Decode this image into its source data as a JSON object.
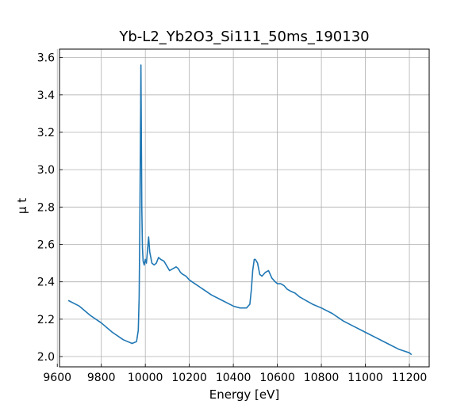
{
  "chart_data": {
    "type": "line",
    "title": "Yb-L2_Yb2O3_Si111_50ms_190130",
    "xlabel": "Energy [eV]",
    "ylabel": "μ t",
    "xlim": [
      9610,
      11290
    ],
    "ylim": [
      1.945,
      3.645
    ],
    "grid": true,
    "x_ticks": [
      9600,
      9800,
      10000,
      10200,
      10400,
      10600,
      10800,
      11000,
      11200
    ],
    "y_ticks": [
      2.0,
      2.2,
      2.4,
      2.6,
      2.8,
      3.0,
      3.2,
      3.4,
      3.6
    ],
    "color": "#1f77b4",
    "series": [
      {
        "x": [
          9650,
          9700,
          9750,
          9800,
          9850,
          9900,
          9940,
          9960,
          9968,
          9972,
          9975,
          9977,
          9979,
          9980,
          9982,
          9984,
          9987,
          9990,
          9995,
          10000,
          10005,
          10010,
          10015,
          10020,
          10030,
          10040,
          10050,
          10060,
          10070,
          10085,
          10100,
          10110,
          10125,
          10140,
          10150,
          10160,
          10170,
          10185,
          10200,
          10225,
          10250,
          10275,
          10300,
          10350,
          10400,
          10430,
          10460,
          10475,
          10482,
          10488,
          10495,
          10500,
          10510,
          10520,
          10530,
          10545,
          10560,
          10575,
          10590,
          10600,
          10615,
          10630,
          10645,
          10660,
          10680,
          10700,
          10730,
          10760,
          10800,
          10850,
          10900,
          10950,
          11000,
          11050,
          11100,
          11150,
          11200,
          11210
        ],
        "y": [
          2.3,
          2.27,
          2.22,
          2.18,
          2.13,
          2.09,
          2.07,
          2.08,
          2.14,
          2.32,
          2.7,
          3.05,
          3.35,
          3.56,
          3.2,
          2.8,
          2.58,
          2.51,
          2.49,
          2.52,
          2.5,
          2.57,
          2.64,
          2.56,
          2.5,
          2.49,
          2.5,
          2.53,
          2.52,
          2.51,
          2.48,
          2.46,
          2.47,
          2.48,
          2.47,
          2.45,
          2.44,
          2.43,
          2.41,
          2.39,
          2.37,
          2.35,
          2.33,
          2.3,
          2.27,
          2.26,
          2.26,
          2.28,
          2.36,
          2.46,
          2.52,
          2.52,
          2.5,
          2.44,
          2.43,
          2.45,
          2.46,
          2.42,
          2.4,
          2.39,
          2.39,
          2.38,
          2.36,
          2.35,
          2.34,
          2.32,
          2.3,
          2.28,
          2.26,
          2.23,
          2.19,
          2.16,
          2.13,
          2.1,
          2.07,
          2.04,
          2.02,
          2.01
        ]
      }
    ]
  }
}
